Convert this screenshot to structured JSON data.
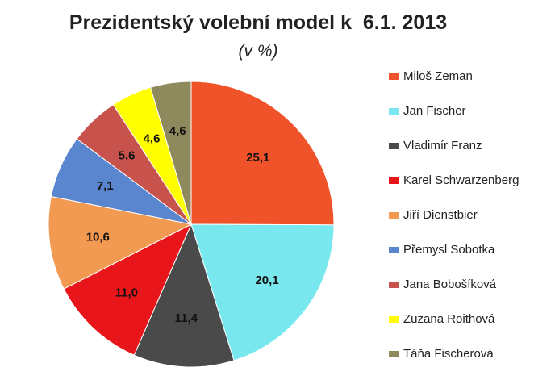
{
  "chart_data": {
    "type": "pie",
    "title": "Prezidentský volební model k  6.1. 2013",
    "subtitle": "(v %)",
    "legend_position": "right",
    "slices": [
      {
        "label": "Miloš Zeman",
        "value": 25.1,
        "value_label": "25,1",
        "color": "#f0532a"
      },
      {
        "label": "Jan Fischer",
        "value": 20.1,
        "value_label": "20,1",
        "color": "#79e8ee"
      },
      {
        "label": "Vladimír Franz",
        "value": 11.4,
        "value_label": "11,4",
        "color": "#4a4a4a"
      },
      {
        "label": "Karel Schwarzenberg",
        "value": 11.0,
        "value_label": "11,0",
        "color": "#e8161a"
      },
      {
        "label": "Jiří Dienstbier",
        "value": 10.6,
        "value_label": "10,6",
        "color": "#f39a52"
      },
      {
        "label": "Přemysl Sobotka",
        "value": 7.1,
        "value_label": "7,1",
        "color": "#5a86cf"
      },
      {
        "label": "Jana Bobošíková",
        "value": 5.6,
        "value_label": "5,6",
        "color": "#c8534d"
      },
      {
        "label": "Zuzana Roithová",
        "value": 4.6,
        "value_label": "4,6",
        "color": "#ffff00"
      },
      {
        "label": "Táňa Fischerová",
        "value": 4.6,
        "value_label": "4,6",
        "color": "#8e8a5e"
      }
    ]
  }
}
